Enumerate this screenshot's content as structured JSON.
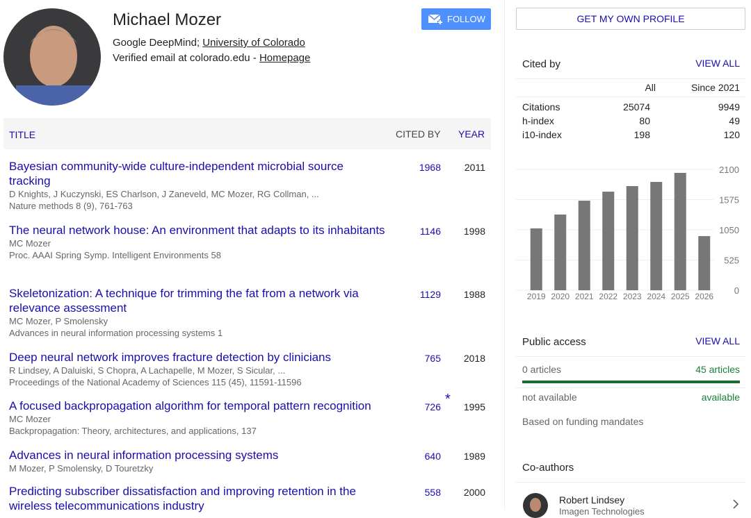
{
  "profile": {
    "name": "Michael Mozer",
    "affiliation_prefix": "Google DeepMind;",
    "affiliation_link": "University of Colorado",
    "email": "Verified email at colorado.edu -",
    "homepage": "Homepage",
    "follow": "FOLLOW"
  },
  "table_header": {
    "title": "TITLE",
    "cited_by": "CITED BY",
    "year": "YEAR"
  },
  "articles": [
    {
      "title": "Bayesian community-wide culture-independent microbial source tracking",
      "authors": "D Knights, J Kuczynski, ES Charlson, J Zaneveld, MC Mozer, RG Collman, ...",
      "venue": "Nature methods 8 (9), 761-763",
      "cited_by": 1968,
      "year": 2011
    },
    {
      "title": "The neural network house: An environment that adapts to its inhabitants",
      "authors": "MC Mozer",
      "venue": "Proc. AAAI Spring Symp. Intelligent Environments 58",
      "cited_by": 1146,
      "year": 1998
    },
    {
      "title": "Skeletonization: A technique for trimming the fat from a network via relevance assessment",
      "authors": "MC Mozer, P Smolensky",
      "venue": "Advances in neural information processing systems 1",
      "cited_by": 1129,
      "year": 1988
    },
    {
      "title": "Deep neural network improves fracture detection by clinicians",
      "authors": "R Lindsey, A Daluiski, S Chopra, A Lachapelle, M Mozer, S Sicular, ...",
      "venue": "Proceedings of the National Academy of Sciences 115 (45), 11591-11596",
      "cited_by": 765,
      "year": 2018
    },
    {
      "title": "A focused backpropagation algorithm for temporal pattern recognition",
      "authors": "MC Mozer",
      "venue": "Backpropagation: Theory, architectures, and applications, 137",
      "cited_by": 726,
      "cited_by_note": "*",
      "year": 1995
    },
    {
      "title": "Advances in neural information processing systems",
      "authors": "M Mozer, P Smolensky, D Touretzky",
      "cited_by": 640,
      "year": 1989
    },
    {
      "title": "Predicting subscriber dissatisfaction and improving retention in the wireless telecommunications industry",
      "cited_by": 558,
      "year": 2000
    }
  ],
  "sidebar": {
    "get_profile": "GET MY OWN PROFILE",
    "cited_by": {
      "title": "Cited by",
      "view_all": "VIEW ALL",
      "columns": [
        "All",
        "Since 2021"
      ],
      "rows": [
        {
          "label": "Citations",
          "all": 25074,
          "since": 9949
        },
        {
          "label": "h-index",
          "all": 80,
          "since": 49
        },
        {
          "label": "i10-index",
          "all": 198,
          "since": 120
        }
      ]
    },
    "public_access": {
      "title": "Public access",
      "view_all": "VIEW ALL",
      "not_available_count": "0 articles",
      "available_count": "45 articles",
      "not_available": "not available",
      "available": "available",
      "note": "Based on funding mandates"
    },
    "coauthors": {
      "title": "Co-authors",
      "list": [
        {
          "name": "Robert Lindsey",
          "affiliation": "Imagen Technologies"
        }
      ]
    }
  },
  "chart_data": {
    "type": "bar",
    "categories": [
      "2019",
      "2020",
      "2021",
      "2022",
      "2023",
      "2024",
      "2025",
      "2026"
    ],
    "values": [
      1075,
      1316,
      1557,
      1714,
      1810,
      1883,
      2040,
      941
    ],
    "color": "#777777",
    "ylim": [
      0,
      2100
    ],
    "yticks": [
      0,
      525,
      1050,
      1575,
      2100
    ],
    "grid": true
  }
}
